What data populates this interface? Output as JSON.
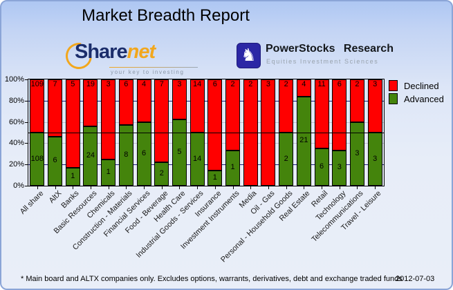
{
  "title": "Market Breadth Report",
  "logos": {
    "sharenet": {
      "text_primary": "Share",
      "text_secondary": "net",
      "tagline": "your key to investing",
      "icon": "orange-arc-icon",
      "color_primary": "#1b2d6b",
      "color_secondary": "#f2a71d"
    },
    "powerstocks": {
      "title": "PowerStocks Research",
      "tagline": "Equities Investment Sciences",
      "icon": "chess-knight-icon",
      "icon_bg_color": "#2b27a5"
    }
  },
  "legend": {
    "items": [
      {
        "label": "Declined",
        "color": "#ff0000"
      },
      {
        "label": "Advanced",
        "color": "#44840c"
      }
    ]
  },
  "footer": {
    "note": "* Main board and ALTX companies only. Excludes options, warrants, derivatives, debt and exchange traded funds",
    "date": "2012-07-03"
  },
  "chart_data": {
    "type": "bar",
    "stacked": true,
    "normalized": "percent_of_total",
    "title": "",
    "xlabel": "",
    "ylabel": "",
    "ylim": [
      0,
      100
    ],
    "grid": true,
    "legend_position": "right",
    "categories": [
      "All share",
      "AltX",
      "Banks",
      "Basic Resources",
      "Chemicals",
      "Construction - Materials",
      "Financial Services",
      "Food - Beverage",
      "Health Care",
      "Industrial Goods - Services",
      "Insurance",
      "Investment Instruments",
      "Media",
      "Oil - Gas",
      "Personal - Household Goods",
      "Real Estate",
      "Retail",
      "Technology",
      "Telecommunications",
      "Travel - Leisure"
    ],
    "series": [
      {
        "name": "Declined",
        "color": "#ff0000",
        "values": [
          109,
          7,
          5,
          19,
          3,
          6,
          4,
          7,
          3,
          14,
          6,
          2,
          2,
          3,
          2,
          4,
          11,
          6,
          2,
          3
        ]
      },
      {
        "name": "Advanced",
        "color": "#44840c",
        "values": [
          108,
          6,
          1,
          24,
          1,
          8,
          6,
          2,
          5,
          14,
          1,
          1,
          0,
          0,
          2,
          21,
          6,
          3,
          3,
          3
        ]
      }
    ],
    "y_ticks": [
      "0%",
      "20%",
      "40%",
      "60%",
      "80%",
      "100%"
    ],
    "gridlines": {
      "levels": [
        {
          "pct": 20,
          "color": "#1c1c78",
          "over_bars": false
        },
        {
          "pct": 40,
          "color": "#bfbfcf",
          "over_bars": false
        },
        {
          "pct": 50,
          "color": "#000000",
          "over_bars": true
        },
        {
          "pct": 60,
          "color": "#bfbfcf",
          "over_bars": false
        },
        {
          "pct": 80,
          "color": "#1c1c78",
          "over_bars": false
        }
      ]
    }
  }
}
